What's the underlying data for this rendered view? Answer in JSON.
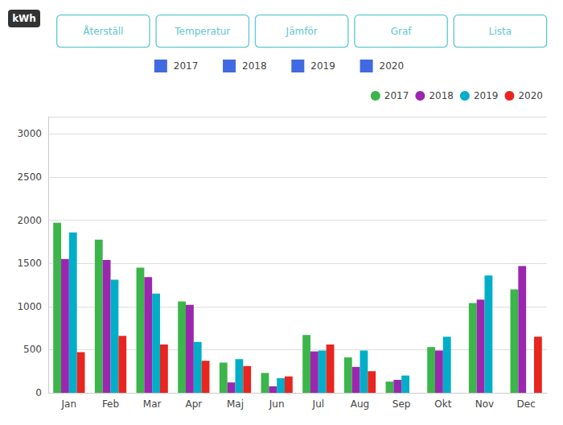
{
  "chart_data": {
    "type": "bar",
    "ylabel": "kWh",
    "annotations": [
      "Återställ",
      "Temperatur",
      "Jämför",
      "Graf",
      "Lista"
    ],
    "categories": [
      "Jan",
      "Feb",
      "Mar",
      "Apr",
      "Maj",
      "Jun",
      "Jul",
      "Aug",
      "Sep",
      "Okt",
      "Nov",
      "Dec"
    ],
    "series": [
      {
        "name": "2017",
        "color": "#3cb54a",
        "values": [
          1970,
          1775,
          1450,
          1060,
          350,
          230,
          670,
          410,
          130,
          530,
          1040,
          1200
        ]
      },
      {
        "name": "2018",
        "color": "#9b27af",
        "values": [
          1550,
          1540,
          1340,
          1020,
          120,
          75,
          480,
          300,
          150,
          490,
          1080,
          1470
        ]
      },
      {
        "name": "2019",
        "color": "#00aec8",
        "values": [
          1860,
          1310,
          1150,
          590,
          390,
          170,
          490,
          490,
          200,
          650,
          1360,
          0
        ]
      },
      {
        "name": "2020",
        "color": "#e8251f",
        "values": [
          470,
          660,
          560,
          370,
          310,
          190,
          560,
          250,
          0,
          0,
          0,
          650
        ]
      }
    ],
    "ylim": [
      0,
      3200
    ],
    "yticks": [
      0,
      500,
      1000,
      1500,
      2000,
      2500,
      3000
    ],
    "grid": true,
    "legend": "upper right"
  }
}
